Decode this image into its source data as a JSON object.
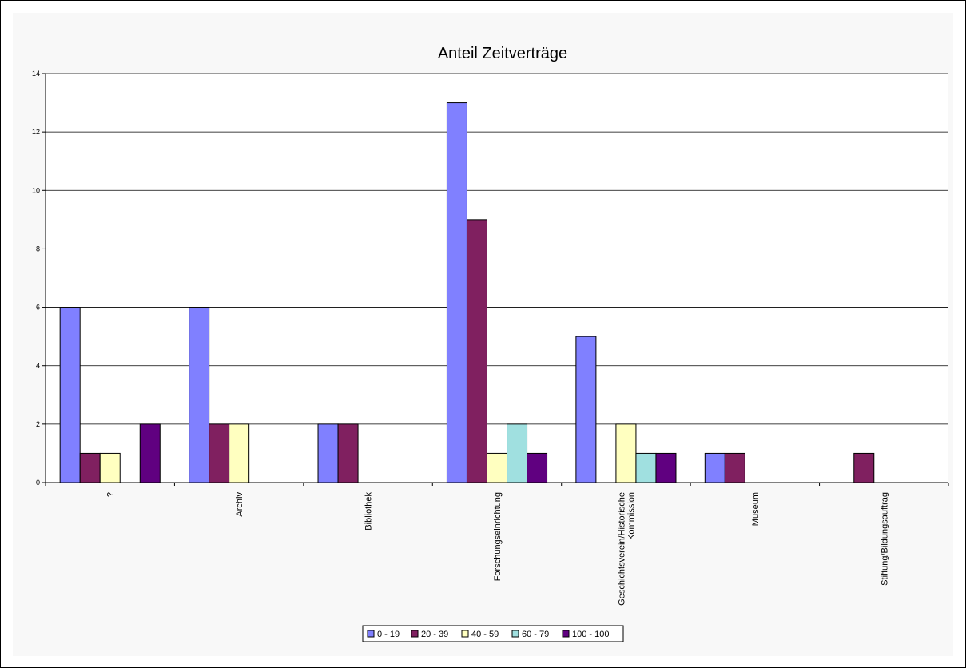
{
  "chart_data": {
    "type": "bar",
    "title": "Anteil Zeitverträge",
    "xlabel": "",
    "ylabel": "",
    "ylim": [
      0,
      14
    ],
    "yticks": [
      0,
      2,
      4,
      6,
      8,
      10,
      12,
      14
    ],
    "grid": true,
    "legend_position": "bottom",
    "categories": [
      "?",
      "Archiv",
      "Bibliothek",
      "Forschungseinrichtung",
      "Geschichtsverein/Historische Kommission",
      "Museum",
      "Stiftung/Bildungsauftrag"
    ],
    "series": [
      {
        "name": "0 - 19",
        "color": "#8080ff",
        "values": [
          6,
          6,
          2,
          13,
          5,
          1,
          0
        ]
      },
      {
        "name": "20 - 39",
        "color": "#802060",
        "values": [
          1,
          2,
          2,
          9,
          0,
          1,
          1
        ]
      },
      {
        "name": "40 - 59",
        "color": "#ffffc0",
        "values": [
          1,
          2,
          0,
          1,
          2,
          0,
          0
        ]
      },
      {
        "name": "60 - 79",
        "color": "#a0e0e0",
        "values": [
          0,
          0,
          0,
          2,
          1,
          0,
          0
        ]
      },
      {
        "name": "100 - 100",
        "color": "#600080",
        "values": [
          2,
          0,
          0,
          1,
          1,
          0,
          0
        ]
      }
    ]
  }
}
